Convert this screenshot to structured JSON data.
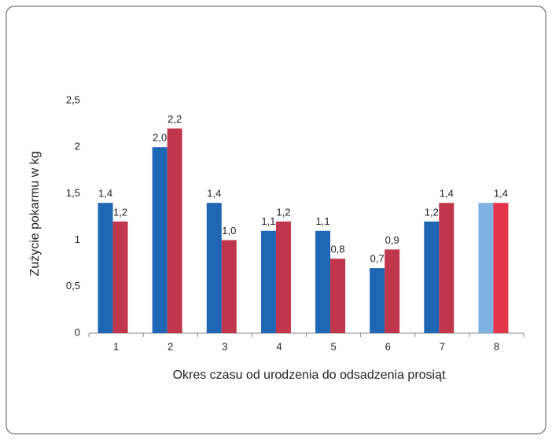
{
  "chart_data": {
    "type": "bar",
    "ylabel": "Zużycie pokarmu w kg",
    "xlabel": "Okres czasu od urodzenia do odsadzenia prosiąt",
    "categories": [
      "1",
      "2",
      "3",
      "4",
      "5",
      "6",
      "7",
      "8"
    ],
    "series": [
      {
        "color": "#1f66b5",
        "colors": [
          "#1f66b5",
          "#1f66b5",
          "#1f66b5",
          "#1f66b5",
          "#1f66b5",
          "#1f66b5",
          "#1f66b5",
          "#7fb2e3"
        ],
        "values": [
          1.4,
          2.0,
          1.4,
          1.1,
          1.1,
          0.7,
          1.2,
          1.4
        ],
        "value_labels": [
          "1,4",
          "2,0",
          "1,4",
          "1,1",
          "1,1",
          "0,7",
          "1,2",
          null
        ]
      },
      {
        "color": "#c0364c",
        "colors": [
          "#c0364c",
          "#c0364c",
          "#c0364c",
          "#c0364c",
          "#c0364c",
          "#c0364c",
          "#c0364c",
          "#e2354c"
        ],
        "values": [
          1.2,
          2.2,
          1.0,
          1.2,
          0.8,
          0.9,
          1.4,
          1.4
        ],
        "value_labels": [
          "1,2",
          "2,2",
          "1,0",
          "1,2",
          "0,8",
          "0,9",
          "1,4",
          "1,4"
        ]
      }
    ],
    "ylim": [
      0,
      2.5
    ],
    "yticks": [
      0,
      {
        "value": 0.5,
        "label": "0,5"
      },
      1,
      {
        "value": 1.5,
        "label": "1,5"
      },
      2,
      {
        "value": 2.5,
        "label": "2,5"
      }
    ],
    "grid": false
  }
}
